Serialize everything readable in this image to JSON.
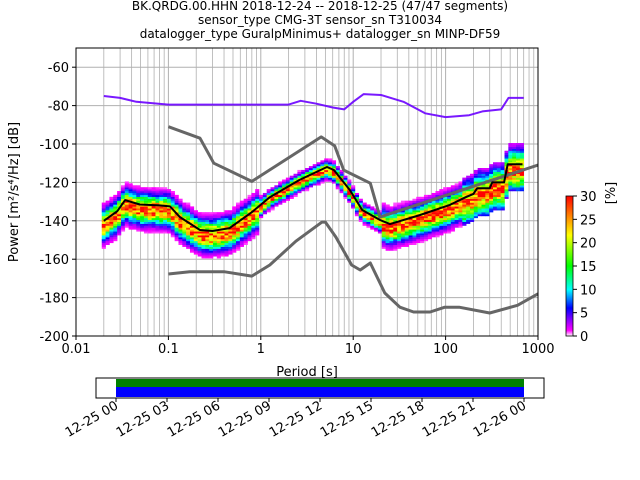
{
  "title": {
    "line1": "BK.QRDG.00.HHN   2018-12-24 -- 2018-12-25  (47/47 segments)",
    "line2": "sensor_type CMG-3T sensor_sn T310034",
    "line3": "datalogger_type GuralpMinimus+ datalogger_sn MINP-DF59"
  },
  "chart_data": {
    "type": "heatmap",
    "xscale": "log",
    "xlabel": "Period [s]",
    "ylabel": "Power [m²/s⁴/Hz] [dB]",
    "xlim": [
      0.01,
      1000
    ],
    "ylim": [
      -200,
      -50
    ],
    "xticks": [
      "0.01",
      "0.1",
      "1",
      "10",
      "100",
      "1000"
    ],
    "yticks": [
      "-60",
      "-80",
      "-100",
      "-120",
      "-140",
      "-160",
      "-180",
      "-200"
    ],
    "grid": true,
    "colorbar": {
      "label": "[%]",
      "range": [
        0,
        30
      ],
      "ticks": [
        "0",
        "5",
        "10",
        "15",
        "20",
        "25",
        "30"
      ]
    },
    "series": [
      {
        "name": "NHNM",
        "color": "#666666",
        "points": [
          [
            0.1,
            -91
          ],
          [
            0.22,
            -97
          ],
          [
            0.31,
            -110
          ],
          [
            0.8,
            -119.5
          ],
          [
            4.5,
            -96.3
          ],
          [
            6.3,
            -101
          ],
          [
            7.9,
            -113.6
          ],
          [
            15.3,
            -120.4
          ],
          [
            19.5,
            -138
          ],
          [
            1000,
            -111
          ]
        ]
      },
      {
        "name": "NLNM",
        "color": "#666666",
        "points": [
          [
            0.1,
            -167.7
          ],
          [
            0.17,
            -166.5
          ],
          [
            0.4,
            -166.5
          ],
          [
            0.8,
            -168.8
          ],
          [
            1.25,
            -163
          ],
          [
            2.4,
            -150.6
          ],
          [
            4.6,
            -140.7
          ],
          [
            5,
            -140.7
          ],
          [
            6.5,
            -148.5
          ],
          [
            9.6,
            -163
          ],
          [
            11.9,
            -165.6
          ],
          [
            15.3,
            -162
          ],
          [
            22,
            -177.6
          ],
          [
            32,
            -185
          ],
          [
            45,
            -187.5
          ],
          [
            68,
            -187.5
          ],
          [
            98,
            -185
          ],
          [
            140,
            -185
          ],
          [
            300,
            -188
          ],
          [
            600,
            -184
          ],
          [
            1000,
            -178
          ]
        ]
      },
      {
        "name": "median",
        "color": "#000000",
        "points": [
          [
            0.02,
            -140
          ],
          [
            0.028,
            -135
          ],
          [
            0.034,
            -129.2
          ],
          [
            0.049,
            -131.5
          ],
          [
            0.08,
            -132
          ],
          [
            0.104,
            -132.5
          ],
          [
            0.133,
            -138
          ],
          [
            0.22,
            -144.8
          ],
          [
            0.3,
            -145.3
          ],
          [
            0.46,
            -143.8
          ],
          [
            0.8,
            -135.5
          ],
          [
            1.25,
            -127.7
          ],
          [
            2.6,
            -118.8
          ],
          [
            4.4,
            -113.6
          ],
          [
            5.2,
            -112
          ],
          [
            6.2,
            -113.6
          ],
          [
            9.2,
            -124
          ],
          [
            12.5,
            -134.4
          ],
          [
            19.5,
            -139.6
          ],
          [
            25,
            -141.7
          ],
          [
            53,
            -137
          ],
          [
            110,
            -131.8
          ],
          [
            165,
            -127.7
          ],
          [
            200,
            -126
          ],
          [
            220,
            -123
          ],
          [
            300,
            -123
          ],
          [
            320,
            -120
          ],
          [
            430,
            -120
          ],
          [
            470,
            -110.5
          ],
          [
            680,
            -110.5
          ]
        ]
      },
      {
        "name": "max-mode",
        "color": "#6a00ff",
        "points": [
          [
            0.02,
            -75
          ],
          [
            0.03,
            -76
          ],
          [
            0.045,
            -78
          ],
          [
            0.1,
            -79.5
          ],
          [
            2,
            -79.5
          ],
          [
            2.7,
            -77.5
          ],
          [
            4,
            -79
          ],
          [
            6,
            -81
          ],
          [
            8,
            -82
          ],
          [
            10,
            -78
          ],
          [
            13,
            -74
          ],
          [
            20,
            -74.5
          ],
          [
            35,
            -78
          ],
          [
            60,
            -84
          ],
          [
            100,
            -86
          ],
          [
            180,
            -85
          ],
          [
            250,
            -83
          ],
          [
            400,
            -82
          ],
          [
            480,
            -76
          ],
          [
            700,
            -76
          ]
        ]
      }
    ]
  },
  "timeline": {
    "ticks": [
      "12-25 00",
      "12-25 03",
      "12-25 06",
      "12-25 09",
      "12-25 12",
      "12-25 15",
      "12-25 18",
      "12-25 21",
      "12-26 00"
    ],
    "coverage_color": "#008000",
    "used_color": "#0000ff"
  }
}
